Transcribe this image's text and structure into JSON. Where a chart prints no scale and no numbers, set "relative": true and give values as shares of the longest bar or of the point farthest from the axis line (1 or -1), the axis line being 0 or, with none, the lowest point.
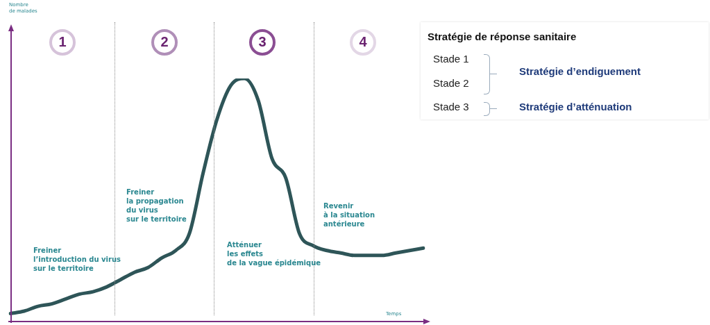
{
  "chart_data": {
    "type": "line",
    "relative": true,
    "title": "Stratégie de réponse sanitaire",
    "xlabel": "Temps",
    "categories": [
      null,
      null,
      null,
      null,
      null,
      null,
      null,
      null,
      null,
      null,
      null,
      null,
      null,
      null,
      null,
      null,
      null,
      null,
      null,
      null,
      null,
      null,
      null,
      null,
      null,
      null,
      null,
      null,
      null,
      null,
      null
    ],
    "series": [
      {
        "color": "#2e5558",
        "values": [
          0.03,
          0.04,
          0.06,
          0.07,
          0.09,
          0.11,
          0.12,
          0.14,
          0.17,
          0.2,
          0.22,
          0.26,
          0.29,
          0.36,
          0.61,
          0.83,
          0.97,
          1,
          0.91,
          0.67,
          0.59,
          0.36,
          0.31,
          0.29,
          0.28,
          0.27,
          0.27,
          0.27,
          0.28,
          0.29,
          0.3
        ]
      }
    ],
    "legend": false,
    "annotations": [
      "1",
      "2",
      "3",
      "4",
      "Freiner\nl’introduction du virus\nsur le territoire",
      "Freiner\nla propagation\ndu virus\nsur le territoire",
      "Atténuer\nles effets\nde la vague épidémique",
      "Revenir\nà la situation\nantérieure",
      "Stade 1",
      "Stade 2",
      "Stade 3",
      "Stratégie d’endiguement",
      "Stratégie d’atténuation",
      "Nombre\nde malades"
    ]
  }
}
